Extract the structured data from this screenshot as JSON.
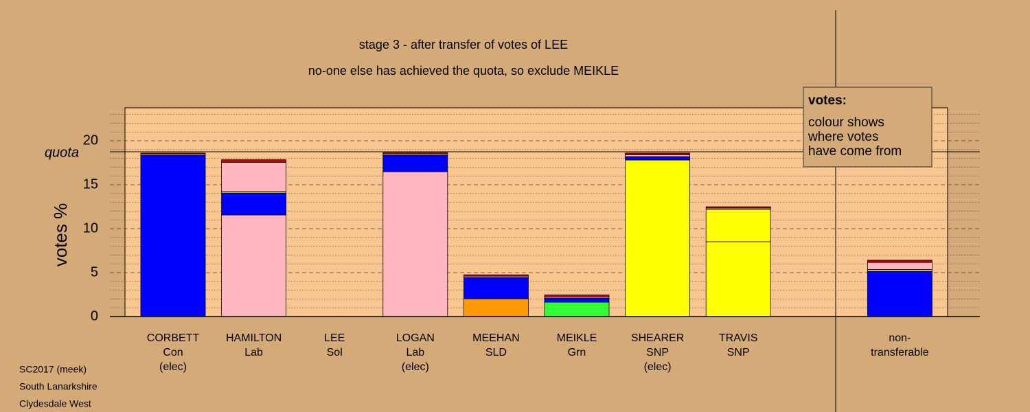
{
  "chart_data": {
    "type": "stacked-bar",
    "title": "stage 3 - after transfer of votes of LEE",
    "subtitle": "no-one else has achieved the quota, so exclude MEIKLE",
    "y_label": "votes %",
    "ylim": [
      0,
      23.75
    ],
    "yticks": [
      0,
      5,
      10,
      15,
      20
    ],
    "yminor": [
      1,
      2,
      3,
      4,
      6,
      7,
      8,
      9,
      11,
      12,
      13,
      14,
      16,
      17,
      18,
      19,
      21,
      22,
      23
    ],
    "quota": 18.75,
    "quota_label": "quota",
    "legend": {
      "title": "votes:",
      "lines": [
        "colour shows",
        "where votes",
        "have come from"
      ]
    },
    "categories": [
      [
        "CORBETT",
        "Con",
        "(elec)"
      ],
      [
        "HAMILTON",
        "Lab"
      ],
      [
        "LEE",
        "Sol"
      ],
      [
        "LOGAN",
        "Lab",
        "(elec)"
      ],
      [
        "MEEHAN",
        "SLD"
      ],
      [
        "MEIKLE",
        "Grn"
      ],
      [
        "SHEARER",
        "SNP",
        "(elec)"
      ],
      [
        "TRAVIS",
        "SNP"
      ],
      [
        "non-",
        "transferable"
      ]
    ],
    "segments": [
      [
        {
          "color": "#0000ff",
          "value": 18.35
        },
        {
          "color": "#ffb6c1",
          "value": 0.15
        },
        {
          "color": "#cc0000",
          "value": 0.1
        }
      ],
      [
        {
          "color": "#ffb6c1",
          "value": 11.56
        },
        {
          "color": "#0000ff",
          "value": 2.5
        },
        {
          "color": "#ffff00",
          "value": 0.2
        },
        {
          "color": "#ffb6c1",
          "value": 3.28
        },
        {
          "color": "#cc0000",
          "value": 0.3
        }
      ],
      [],
      [
        {
          "color": "#ffb6c1",
          "value": 16.48
        },
        {
          "color": "#0000ff",
          "value": 1.87
        },
        {
          "color": "#ffb6c1",
          "value": 0.15
        },
        {
          "color": "#cc0000",
          "value": 0.15
        }
      ],
      [
        {
          "color": "#ff9900",
          "value": 2.03
        },
        {
          "color": "#0000ff",
          "value": 2.42
        },
        {
          "color": "#ffb6c1",
          "value": 0.15
        },
        {
          "color": "#cc0000",
          "value": 0.15
        }
      ],
      [
        {
          "color": "#33ff33",
          "value": 1.64
        },
        {
          "color": "#0000ff",
          "value": 0.47
        },
        {
          "color": "#ffb6c1",
          "value": 0.15
        },
        {
          "color": "#cc0000",
          "value": 0.2
        }
      ],
      [
        {
          "color": "#ffff00",
          "value": 17.81
        },
        {
          "color": "#0000ff",
          "value": 0.39
        },
        {
          "color": "#ffb6c1",
          "value": 0.2
        },
        {
          "color": "#cc0000",
          "value": 0.2
        }
      ],
      [
        {
          "color": "#ffff00",
          "value": 8.52
        },
        {
          "color": "#ffff00",
          "value": 3.67
        },
        {
          "color": "#ffb6c1",
          "value": 0.15
        },
        {
          "color": "#cc0000",
          "value": 0.15
        }
      ],
      [
        {
          "color": "#0000ff",
          "value": 5.16
        },
        {
          "color": "#ffff00",
          "value": 0.2
        },
        {
          "color": "#ffb6c1",
          "value": 0.8
        },
        {
          "color": "#cc0000",
          "value": 0.25
        }
      ]
    ],
    "footnotes": [
      "SC2017 (meek)",
      "South Lanarkshire",
      "Clydesdale West"
    ]
  }
}
